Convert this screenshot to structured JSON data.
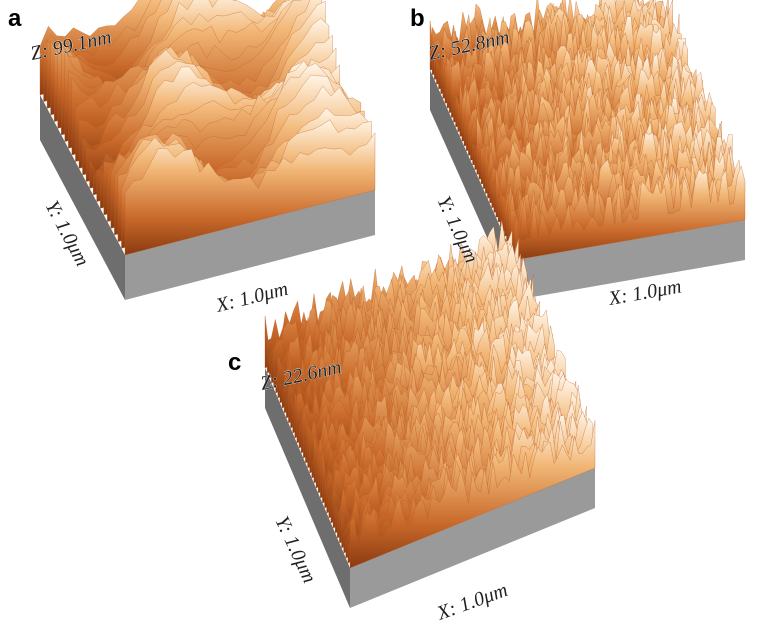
{
  "panels": [
    {
      "label": "a",
      "z": "Z: 99.1nm",
      "y": "Y: 1.0μm",
      "x": "X: 1.0μm"
    },
    {
      "label": "b",
      "z": "Z: 52.8nm",
      "y": "Y: 1.0μm",
      "x": "X: 1.0μm"
    },
    {
      "label": "c",
      "z": "Z: 22.6nm",
      "y": "Y: 1.0μm",
      "x": "X: 1.0μm"
    }
  ]
}
